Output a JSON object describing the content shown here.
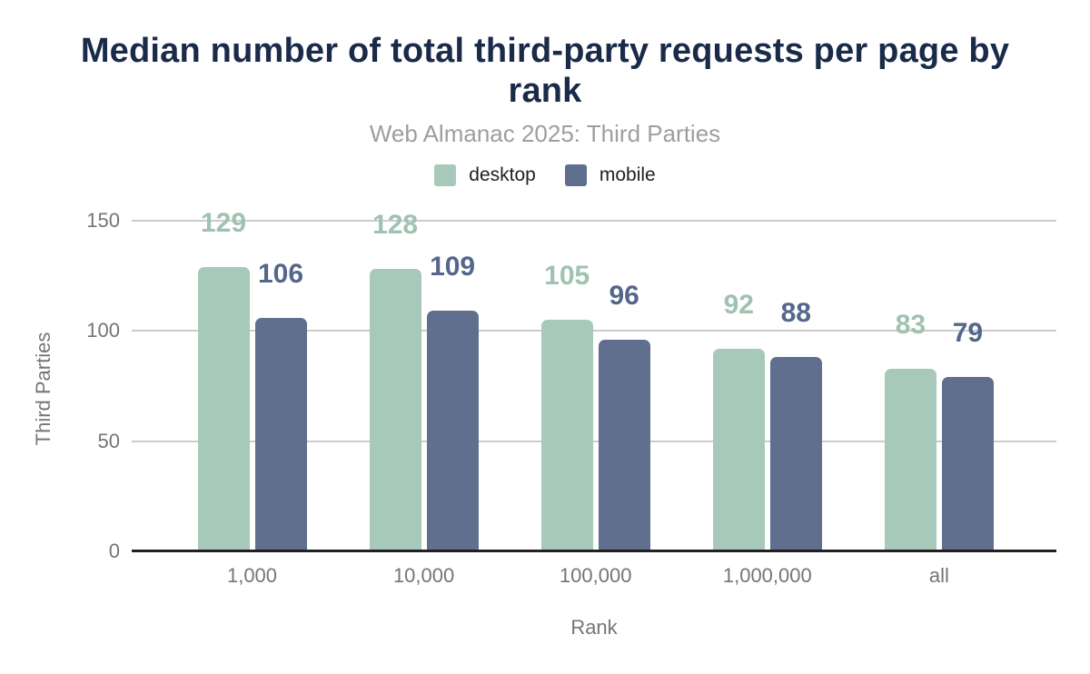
{
  "chart_data": {
    "type": "bar",
    "title": "Median number of total third-party requests per page by rank",
    "subtitle": "Web Almanac 2025: Third Parties",
    "xlabel": "Rank",
    "ylabel": "Third Parties",
    "categories": [
      "1,000",
      "10,000",
      "100,000",
      "1,000,000",
      "all"
    ],
    "series": [
      {
        "name": "desktop",
        "values": [
          129,
          128,
          105,
          92,
          83
        ],
        "color": "#a7c9b9",
        "label_color": "#9fc2b1"
      },
      {
        "name": "mobile",
        "values": [
          106,
          109,
          96,
          88,
          79
        ],
        "color": "#5f6f8d",
        "label_color": "#54668b"
      }
    ],
    "yticks": [
      0,
      50,
      100,
      150
    ],
    "ylim": [
      0,
      150
    ],
    "grid": true,
    "legend_position": "top",
    "colors": {
      "title": "#1a2b4a",
      "subtitle": "#9e9e9e",
      "axis_text": "#757575",
      "gridline": "#cccccc",
      "baseline": "#212121",
      "legend_text": "#1f1f1f",
      "background": "#ffffff"
    }
  }
}
